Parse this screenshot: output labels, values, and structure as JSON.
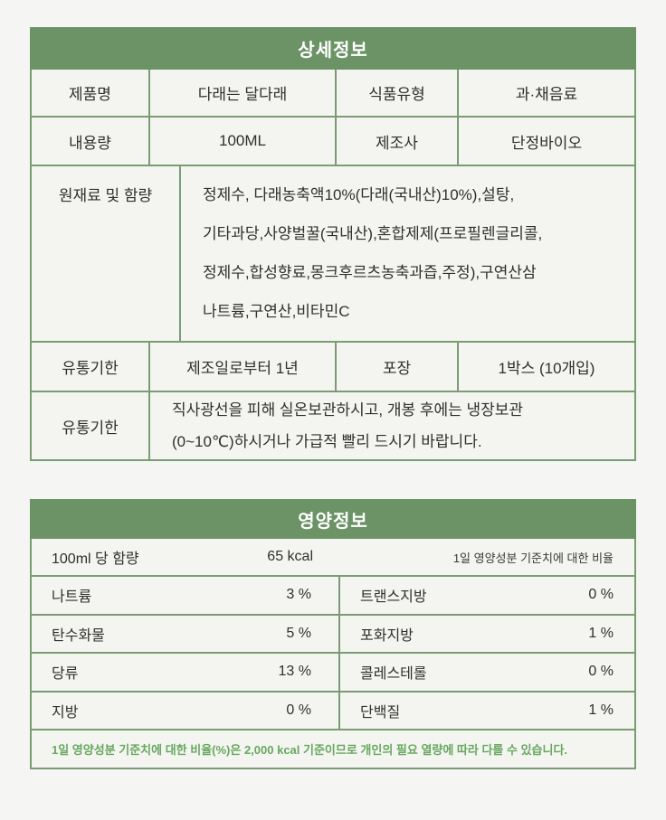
{
  "colors": {
    "header_green": "#6b9366",
    "border_green": "#7a9b74",
    "cell_bg": "#f4f5f1",
    "page_bg": "#f5f6f3",
    "footnote_green": "#67a85f"
  },
  "detail_table": {
    "title": "상세정보",
    "row1": {
      "label1": "제품명",
      "value1": "다래는 달다래",
      "label2": "식품유형",
      "value2": "과·채음료"
    },
    "row2": {
      "label1": "내용량",
      "value1": "100ML",
      "label2": "제조사",
      "value2": "단정바이오"
    },
    "ingredients": {
      "label": "원재료 및 함량",
      "lines": [
        "정제수, 다래농축액10%(다래(국내산)10%),설탕,",
        "기타과당,사양벌꿀(국내산),혼합제제(프로필렌글리콜,",
        "정제수,합성향료,몽크후르츠농축과즙,주정),구연산삼",
        "나트륨,구연산,비타민C"
      ]
    },
    "row4": {
      "label1": "유통기한",
      "value1": "제조일로부터 1년",
      "label2": "포장",
      "value2": "1박스 (10개입)"
    },
    "storage": {
      "label": "유통기한",
      "lines": [
        "직사광선을 피해 실온보관하시고, 개봉 후에는 냉장보관",
        "(0~10℃)하시거나 가급적 빨리 드시기 바랍니다."
      ]
    }
  },
  "nutrition_table": {
    "title": "영양정보",
    "serving": {
      "label": "100ml 당 함량",
      "kcal": "65 kcal",
      "note": "1일 영양성분 기준치에 대한 비율"
    },
    "rows": [
      {
        "left_label": "나트륨",
        "left_value": "3 %",
        "right_label": "트랜스지방",
        "right_value": "0 %"
      },
      {
        "left_label": "탄수화물",
        "left_value": "5 %",
        "right_label": "포화지방",
        "right_value": "1 %"
      },
      {
        "left_label": "당류",
        "left_value": "13 %",
        "right_label": "콜레스테롤",
        "right_value": "0 %"
      },
      {
        "left_label": "지방",
        "left_value": "0 %",
        "right_label": "단백질",
        "right_value": "1 %"
      }
    ],
    "footnote": "1일 영양성분 기준치에 대한 비율(%)은 2,000 kcal 기준이므로 개인의 필요 열량에 따라 다를 수 있습니다."
  },
  "chart_data": {
    "type": "table",
    "title": "영양정보",
    "serving_basis": "100ml 당 함량",
    "energy_kcal": 65,
    "daily_value_percent": {
      "나트륨": 3,
      "탄수화물": 5,
      "당류": 13,
      "지방": 0,
      "트랜스지방": 0,
      "포화지방": 1,
      "콜레스테롤": 0,
      "단백질": 1
    }
  }
}
